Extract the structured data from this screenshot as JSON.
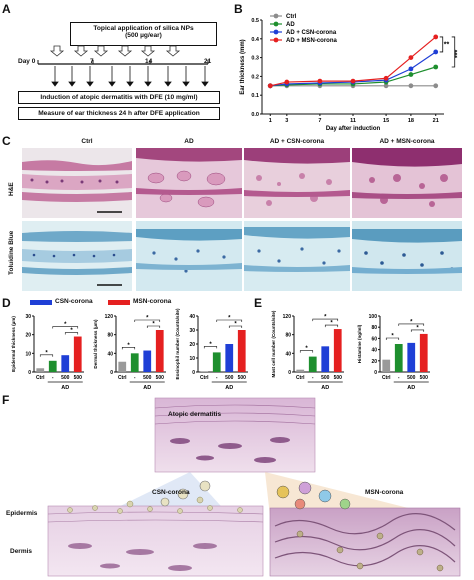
{
  "panels": {
    "A": {
      "letter": "A",
      "top_box_line1": "Topical application of silica NPs",
      "top_box_line2": "(500 µg/ear)",
      "days": [
        "Day 0",
        "7",
        "14",
        "21"
      ],
      "induction_box": "Induction of atopic dermatitis with DFE (10 mg/ml)",
      "measure_box": "Measure of ear thickness 24 h after DFE application"
    },
    "B": {
      "letter": "B"
    },
    "C": {
      "letter": "C",
      "columns": [
        "Ctrl",
        "AD",
        "AD + CSN-corona",
        "AD + MSN-corona"
      ],
      "rows": [
        "H&E",
        "Toluidine Blue"
      ]
    },
    "D": {
      "letter": "D",
      "legend_csn": "CSN-corona",
      "legend_msn": "MSN-corona"
    },
    "E": {
      "letter": "E"
    },
    "F": {
      "letter": "F",
      "atopic": "Atopic dermatitis",
      "csn": "CSN-corona",
      "msn": "MSN-corona",
      "epidermis": "Epidermis",
      "dermis": "Dermis"
    }
  },
  "chart_data": [
    {
      "id": "B",
      "type": "line",
      "ylabel": "Ear thickness (mm)",
      "xlabel": "Day after induction",
      "x": [
        1,
        3,
        7,
        11,
        15,
        18,
        21
      ],
      "ylim": [
        0.0,
        0.5
      ],
      "yticks": [
        "0.0",
        "0.1",
        "0.2",
        "0.3",
        "0.4",
        "0.5"
      ],
      "series": [
        {
          "name": "Ctrl",
          "color": "#8c8c8c",
          "values": [
            0.15,
            0.15,
            0.15,
            0.15,
            0.15,
            0.15,
            0.15
          ]
        },
        {
          "name": "AD",
          "color": "#1e8f2e",
          "values": [
            0.15,
            0.155,
            0.16,
            0.16,
            0.17,
            0.21,
            0.25
          ]
        },
        {
          "name": "AD + CSN-corona",
          "color": "#1f3fd6",
          "values": [
            0.15,
            0.16,
            0.165,
            0.17,
            0.18,
            0.24,
            0.33
          ]
        },
        {
          "name": "AD + MSN-corona",
          "color": "#e52020",
          "values": [
            0.15,
            0.17,
            0.175,
            0.175,
            0.19,
            0.3,
            0.41
          ]
        }
      ],
      "significance": [
        "**",
        "***"
      ]
    },
    {
      "id": "D1",
      "type": "bar",
      "ylabel": "Epidermal thickness (µm)",
      "categories": [
        "Ctrl",
        "-",
        "500",
        "500"
      ],
      "group_label": "AD",
      "values": [
        2,
        6,
        9,
        19
      ],
      "colors": [
        "#9a9a9a",
        "#1e8f2e",
        "#1f3fd6",
        "#e52020"
      ],
      "ylim": [
        0,
        30
      ],
      "yticks": [
        "0",
        "10",
        "20",
        "30"
      ],
      "stars": [
        "*",
        "*",
        "*"
      ]
    },
    {
      "id": "D2",
      "type": "bar",
      "ylabel": "Dermal thickness (µm)",
      "categories": [
        "Ctrl",
        "-",
        "500",
        "500"
      ],
      "group_label": "AD",
      "values": [
        22,
        40,
        46,
        90
      ],
      "colors": [
        "#9a9a9a",
        "#1e8f2e",
        "#1f3fd6",
        "#e52020"
      ],
      "ylim": [
        0,
        120
      ],
      "yticks": [
        "0",
        "40",
        "80",
        "120"
      ],
      "stars": [
        "*",
        "*",
        "*"
      ]
    },
    {
      "id": "D3",
      "type": "bar",
      "ylabel": "Eosinophil number (Counts/site)",
      "categories": [
        "Ctrl",
        "-",
        "500",
        "500"
      ],
      "group_label": "AD",
      "values": [
        0.5,
        14,
        20,
        30
      ],
      "colors": [
        "#9a9a9a",
        "#1e8f2e",
        "#1f3fd6",
        "#e52020"
      ],
      "ylim": [
        0,
        40
      ],
      "yticks": [
        "0",
        "10",
        "20",
        "30",
        "40"
      ],
      "stars": [
        "*",
        "*",
        "*"
      ]
    },
    {
      "id": "E1",
      "type": "bar",
      "ylabel": "Mast cell number (Counts/site)",
      "categories": [
        "Ctrl",
        "-",
        "500",
        "500"
      ],
      "group_label": "AD",
      "values": [
        5,
        33,
        55,
        92
      ],
      "colors": [
        "#9a9a9a",
        "#1e8f2e",
        "#1f3fd6",
        "#e52020"
      ],
      "ylim": [
        0,
        120
      ],
      "yticks": [
        "0",
        "40",
        "80",
        "120"
      ],
      "stars": [
        "*",
        "*",
        "*"
      ]
    },
    {
      "id": "E2",
      "type": "bar",
      "ylabel": "Histamine (ng/ml)",
      "categories": [
        "Ctrl",
        "-",
        "500",
        "500"
      ],
      "group_label": "AD",
      "values": [
        22,
        50,
        52,
        68
      ],
      "colors": [
        "#9a9a9a",
        "#1e8f2e",
        "#1f3fd6",
        "#e52020"
      ],
      "ylim": [
        0,
        100
      ],
      "yticks": [
        "0",
        "20",
        "40",
        "60",
        "80",
        "100"
      ],
      "stars": [
        "*",
        "*",
        "*"
      ]
    }
  ]
}
